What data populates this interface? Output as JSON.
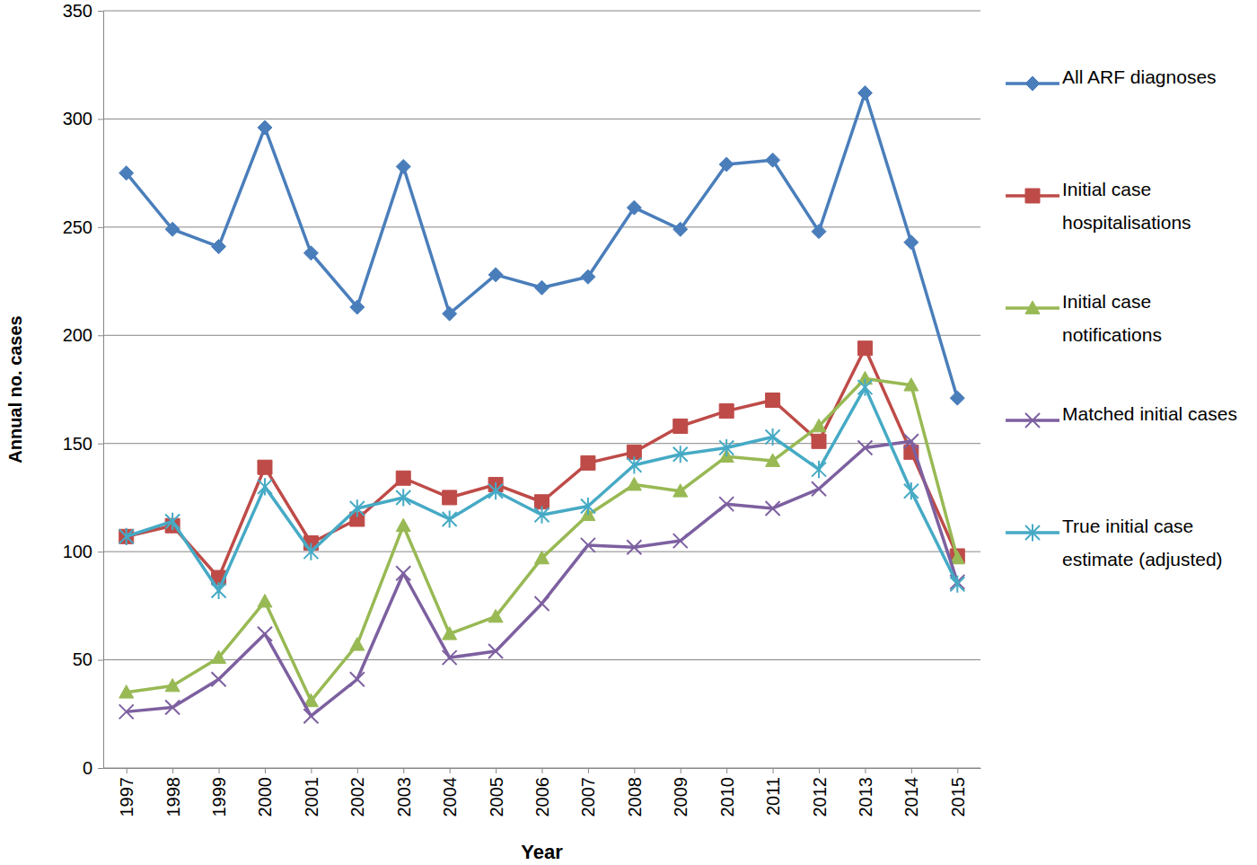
{
  "chart_data": {
    "type": "line",
    "x_label": "Year",
    "y_label": "Annual no. cases",
    "categories": [
      "1997",
      "1998",
      "1999",
      "2000",
      "2001",
      "2002",
      "2003",
      "2004",
      "2005",
      "2006",
      "2007",
      "2008",
      "2009",
      "2010",
      "2011",
      "2012",
      "2013",
      "2014",
      "2015"
    ],
    "ylim": [
      0,
      350
    ],
    "yticks": [
      0,
      50,
      100,
      150,
      200,
      250,
      300,
      350
    ],
    "grid": true,
    "legend": "right",
    "series": [
      {
        "name": "All ARF diagnoses",
        "color": "#4a7ebb",
        "marker": "diamond",
        "values": [
          275,
          249,
          241,
          296,
          238,
          213,
          278,
          210,
          228,
          222,
          227,
          259,
          249,
          279,
          281,
          248,
          312,
          243,
          171
        ]
      },
      {
        "name": "Initial case hospitalisations",
        "color": "#be4b48",
        "marker": "square",
        "values": [
          107,
          112,
          88,
          139,
          104,
          115,
          134,
          125,
          131,
          123,
          141,
          146,
          158,
          165,
          170,
          151,
          194,
          146,
          98
        ]
      },
      {
        "name": "Initial case notifications",
        "color": "#98b954",
        "marker": "triangle",
        "values": [
          35,
          38,
          51,
          77,
          31,
          57,
          112,
          62,
          70,
          97,
          117,
          131,
          128,
          144,
          142,
          158,
          180,
          177,
          97
        ]
      },
      {
        "name": "Matched initial cases",
        "color": "#7d60a0",
        "marker": "x",
        "values": [
          26,
          28,
          41,
          62,
          24,
          41,
          90,
          51,
          54,
          76,
          103,
          102,
          105,
          122,
          120,
          129,
          148,
          151,
          86
        ]
      },
      {
        "name": "True initial case estimate (adjusted)",
        "color": "#46aac5",
        "marker": "star",
        "values": [
          107,
          114,
          82,
          130,
          100,
          120,
          125,
          115,
          128,
          117,
          121,
          140,
          145,
          148,
          153,
          138,
          176,
          128,
          85
        ]
      }
    ]
  }
}
